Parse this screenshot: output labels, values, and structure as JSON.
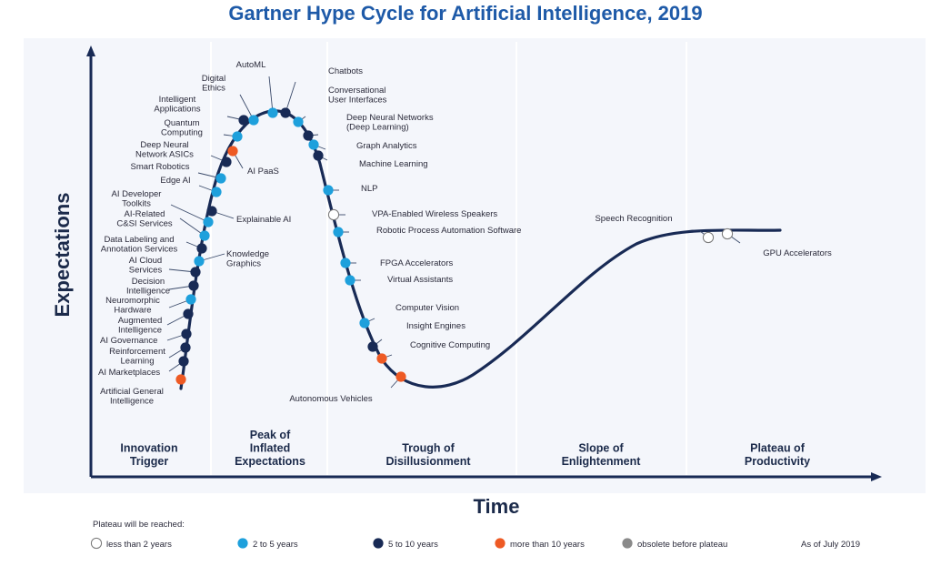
{
  "title": "Gartner Hype Cycle for Artificial Intelligence, 2019",
  "axes": {
    "y_label": "Expectations",
    "x_label": "Time"
  },
  "phases": [
    {
      "lines": [
        "Innovation",
        "Trigger"
      ]
    },
    {
      "lines": [
        "Peak of",
        "Inflated",
        "Expectations"
      ]
    },
    {
      "lines": [
        "Trough of",
        "Disillusionment"
      ]
    },
    {
      "lines": [
        "Slope of",
        "Enlightenment"
      ]
    },
    {
      "lines": [
        "Plateau of",
        "Productivity"
      ]
    }
  ],
  "colors": {
    "lt2": "#ffffff",
    "2to5": "#1ea0dc",
    "5to10": "#182a55",
    "gt10": "#ee5a24",
    "obsolete": "#8a8a8a",
    "curve": "#182a55",
    "title": "#1e5aa8",
    "panel": "#f4f6fb"
  },
  "technologies": [
    {
      "name": "Artificial General Intelligence",
      "lines": [
        "Artificial General",
        "Intelligence"
      ],
      "category": "gt10"
    },
    {
      "name": "AI Marketplaces",
      "lines": [
        "AI Marketplaces"
      ],
      "category": "5to10"
    },
    {
      "name": "Reinforcement Learning",
      "lines": [
        "Reinforcement",
        "Learning"
      ],
      "category": "5to10"
    },
    {
      "name": "AI Governance",
      "lines": [
        "AI Governance"
      ],
      "category": "5to10"
    },
    {
      "name": "Augmented Intelligence",
      "lines": [
        "Augmented",
        "Intelligence"
      ],
      "category": "5to10"
    },
    {
      "name": "Neuromorphic Hardware",
      "lines": [
        "Neuromorphic",
        "Hardware"
      ],
      "category": "2to5"
    },
    {
      "name": "Decision Intelligence",
      "lines": [
        "Decision",
        "Intelligence"
      ],
      "category": "5to10"
    },
    {
      "name": "AI Cloud Services",
      "lines": [
        "AI Cloud",
        "Services"
      ],
      "category": "5to10"
    },
    {
      "name": "Knowledge Graphics",
      "lines": [
        "Knowledge",
        "Graphics"
      ],
      "category": "2to5"
    },
    {
      "name": "Data Labeling and Annotation Services",
      "lines": [
        "Data Labeling and",
        "Annotation Services"
      ],
      "category": "5to10"
    },
    {
      "name": "AI-Related C&SI Services",
      "lines": [
        "AI-Related",
        "C&SI Services"
      ],
      "category": "2to5"
    },
    {
      "name": "AI Developer Toolkits",
      "lines": [
        "AI Developer",
        "Toolkits"
      ],
      "category": "2to5"
    },
    {
      "name": "Explainable AI",
      "lines": [
        "Explainable AI"
      ],
      "category": "5to10"
    },
    {
      "name": "Edge AI",
      "lines": [
        "Edge AI"
      ],
      "category": "2to5"
    },
    {
      "name": "Smart Robotics",
      "lines": [
        "Smart Robotics"
      ],
      "category": "2to5"
    },
    {
      "name": "Deep Neural Network ASICs",
      "lines": [
        "Deep Neural",
        "Network ASICs"
      ],
      "category": "5to10"
    },
    {
      "name": "AI PaaS",
      "lines": [
        "AI PaaS"
      ],
      "category": "gt10"
    },
    {
      "name": "Quantum Computing",
      "lines": [
        "Quantum",
        "Computing"
      ],
      "category": "2to5"
    },
    {
      "name": "Intelligent Applications",
      "lines": [
        "Intelligent",
        "Applications"
      ],
      "category": "5to10"
    },
    {
      "name": "Digital Ethics",
      "lines": [
        "Digital",
        "Ethics"
      ],
      "category": "2to5"
    },
    {
      "name": "AutoML",
      "lines": [
        "AutoML"
      ],
      "category": "2to5"
    },
    {
      "name": "Chatbots",
      "lines": [
        "Chatbots"
      ],
      "category": "5to10"
    },
    {
      "name": "Conversational User Interfaces",
      "lines": [
        "Conversational",
        "User Interfaces"
      ],
      "category": "2to5"
    },
    {
      "name": "Deep Neural Networks (Deep Learning)",
      "lines": [
        "Deep Neural Networks",
        "(Deep Learning)"
      ],
      "category": "5to10"
    },
    {
      "name": "Graph Analytics",
      "lines": [
        "Graph Analytics"
      ],
      "category": "2to5"
    },
    {
      "name": "Machine Learning",
      "lines": [
        "Machine Learning"
      ],
      "category": "5to10"
    },
    {
      "name": "NLP",
      "lines": [
        "NLP"
      ],
      "category": "2to5"
    },
    {
      "name": "VPA-Enabled Wireless Speakers",
      "lines": [
        "VPA-Enabled Wireless Speakers"
      ],
      "category": "lt2"
    },
    {
      "name": "Robotic Process Automation Software",
      "lines": [
        "Robotic Process Automation Software"
      ],
      "category": "2to5"
    },
    {
      "name": "FPGA Accelerators",
      "lines": [
        "FPGA Accelerators"
      ],
      "category": "2to5"
    },
    {
      "name": "Virtual Assistants",
      "lines": [
        "Virtual Assistants"
      ],
      "category": "2to5"
    },
    {
      "name": "Computer Vision",
      "lines": [
        "Computer Vision"
      ],
      "category": "2to5"
    },
    {
      "name": "Insight Engines",
      "lines": [
        "Insight Engines"
      ],
      "category": "5to10"
    },
    {
      "name": "Cognitive Computing",
      "lines": [
        "Cognitive Computing"
      ],
      "category": "gt10"
    },
    {
      "name": "Autonomous Vehicles",
      "lines": [
        "Autonomous Vehicles"
      ],
      "category": "gt10"
    },
    {
      "name": "Speech Recognition",
      "lines": [
        "Speech Recognition"
      ],
      "category": "lt2"
    },
    {
      "name": "GPU Accelerators",
      "lines": [
        "GPU Accelerators"
      ],
      "category": "lt2"
    }
  ],
  "legend": {
    "caption": "Plateau will be reached:",
    "items": [
      {
        "key": "lt2",
        "label": "less than 2 years"
      },
      {
        "key": "2to5",
        "label": "2 to 5 years"
      },
      {
        "key": "5to10",
        "label": "5 to 10 years"
      },
      {
        "key": "gt10",
        "label": "more than 10 years"
      },
      {
        "key": "obsolete",
        "label": "obsolete before plateau"
      }
    ],
    "as_of": "As of July 2019"
  }
}
